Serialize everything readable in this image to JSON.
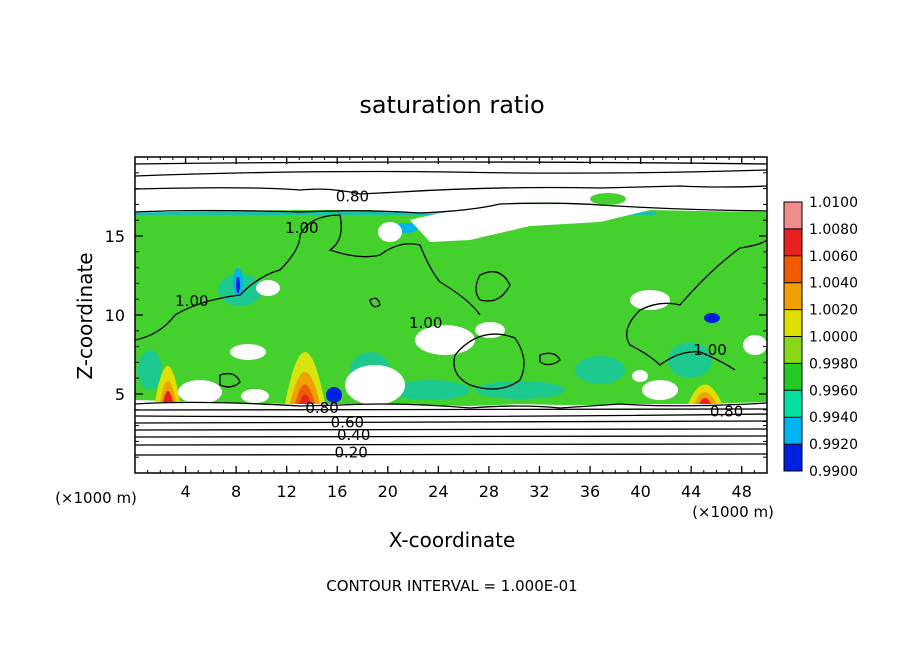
{
  "chart_data": {
    "type": "heatmap",
    "title": "saturation ratio",
    "xlabel": "X-coordinate",
    "ylabel": "Z-coordinate",
    "x_unit": "(×1000 m)",
    "y_unit": "(×1000 m)",
    "xlim": [
      0,
      50
    ],
    "ylim": [
      0,
      20
    ],
    "x_ticks": [
      4,
      8,
      12,
      16,
      20,
      24,
      28,
      32,
      36,
      40,
      44,
      48
    ],
    "y_ticks": [
      5,
      10,
      15
    ],
    "footer": "CONTOUR INTERVAL = 1.000E-01",
    "colorbar": {
      "levels": [
        "1.0100",
        "1.0080",
        "1.0060",
        "1.0040",
        "1.0020",
        "1.0000",
        "0.9980",
        "0.9960",
        "0.9940",
        "0.9920",
        "0.9900"
      ],
      "colors": [
        "#f08c8c",
        "#e82020",
        "#f05a00",
        "#f0a000",
        "#e0e000",
        "#88d818",
        "#22cc22",
        "#00e0a0",
        "#00b4f0",
        "#0020e0",
        "#40007a"
      ]
    },
    "contour_labels": [
      {
        "text": "0.80",
        "x": 17.2,
        "z": 17.5
      },
      {
        "text": "1.00",
        "x": 13.2,
        "z": 15.5
      },
      {
        "text": "1.00",
        "x": 4.5,
        "z": 10.9
      },
      {
        "text": "1.00",
        "x": 23.0,
        "z": 9.5
      },
      {
        "text": "1.00",
        "x": 45.5,
        "z": 7.8
      },
      {
        "text": "0.80",
        "x": 14.8,
        "z": 4.1
      },
      {
        "text": "0.60",
        "x": 16.8,
        "z": 3.2
      },
      {
        "text": "0.80",
        "x": 46.8,
        "z": 3.9
      },
      {
        "text": "0.40",
        "x": 17.3,
        "z": 2.4
      },
      {
        "text": "0.20",
        "x": 17.1,
        "z": 1.3
      }
    ]
  }
}
